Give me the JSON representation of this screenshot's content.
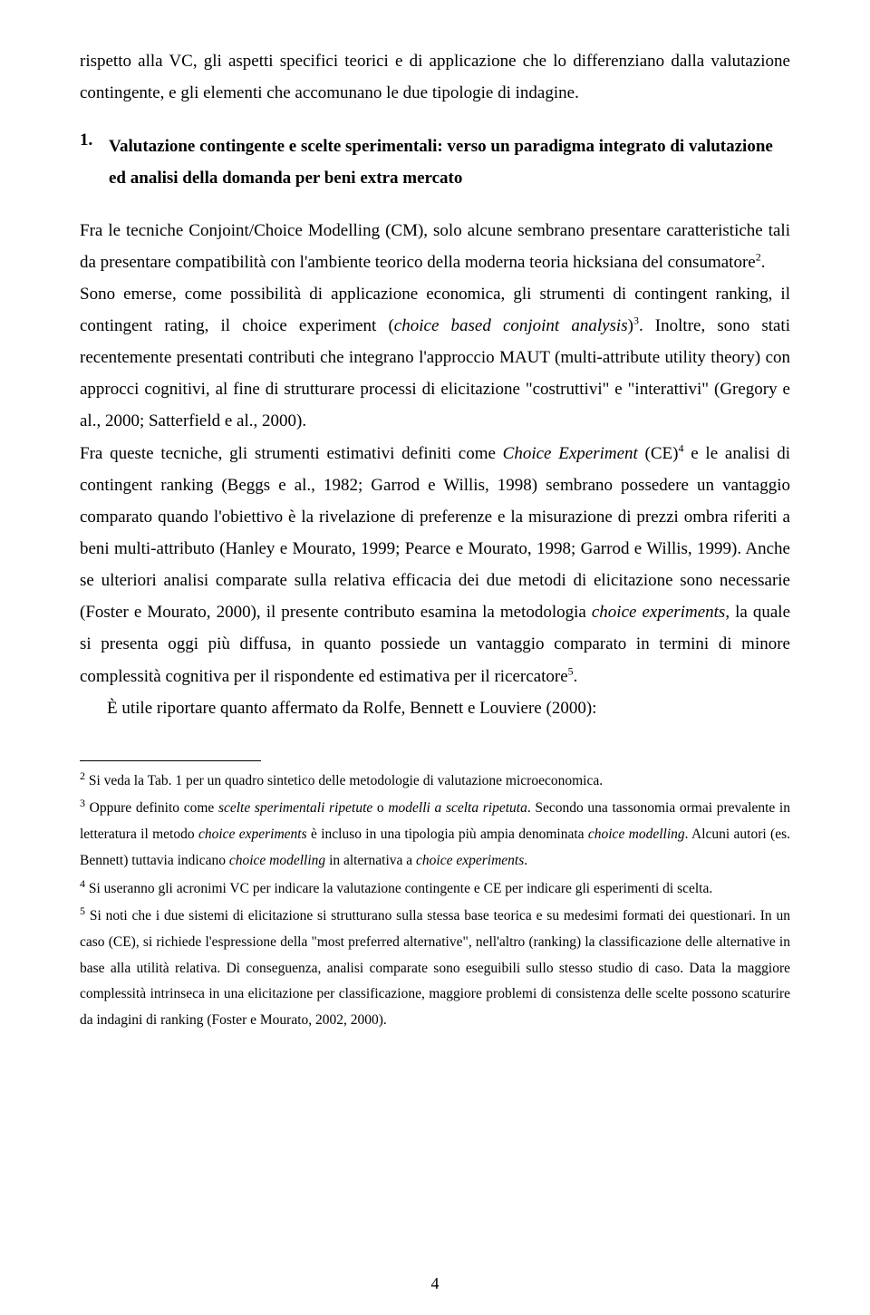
{
  "intro_para": "rispetto alla VC, gli aspetti specifici teorici e di applicazione che lo differenziano dalla valutazione contingente, e gli elementi che accomunano le due tipologie di indagine.",
  "heading": {
    "number": "1.",
    "title": "Valutazione contingente e scelte sperimentali: verso un paradigma integrato di valutazione ed analisi della domanda per beni extra mercato"
  },
  "body": {
    "p1_a": "Fra le tecniche Conjoint/Choice Modelling (CM), solo alcune sembrano presentare caratteristiche tali da presentare compatibilità con l'ambiente teorico della moderna teoria hicksiana del consumatore",
    "p1_sup": "2",
    "p1_b": ".",
    "p2_a": "Sono emerse, come possibilità di applicazione economica, gli strumenti di contingent ranking, il contingent rating, il choice experiment (",
    "p2_it1": "choice based conjoint analysis",
    "p2_b": ")",
    "p2_sup": "3",
    "p2_c": ". Inoltre, sono stati recentemente presentati contributi che integrano l'approccio MAUT (multi-attribute utility theory) con approcci cognitivi, al fine di strutturare processi di elicitazione \"costruttivi\" e \"interattivi\" (Gregory e al., 2000; Satterfield e al., 2000).",
    "p3_a": "Fra queste tecniche, gli strumenti estimativi definiti come ",
    "p3_it1": "Choice Experiment",
    "p3_b": " (CE)",
    "p3_sup1": "4",
    "p3_c": " e le analisi di contingent ranking (Beggs e al., 1982; Garrod e Willis, 1998) sembrano possedere un vantaggio comparato quando l'obiettivo è la rivelazione di preferenze e la misurazione di prezzi ombra riferiti a beni multi-attributo (Hanley e Mourato, 1999; Pearce e Mourato, 1998; Garrod e Willis, 1999). Anche se ulteriori analisi comparate sulla relativa efficacia dei due metodi di elicitazione sono necessarie (Foster e Mourato, 2000), il presente contributo esamina la metodologia ",
    "p3_it2": "choice experiments",
    "p3_d": ", la quale si presenta oggi più diffusa, in quanto possiede un vantaggio comparato in termini di minore complessità cognitiva per il rispondente ed estimativa per il ricercatore",
    "p3_sup2": "5",
    "p3_e": ".",
    "p4": "È utile riportare quanto affermato da Rolfe, Bennett e Louviere (2000):"
  },
  "footnotes": {
    "f2_sup": "2",
    "f2": " Si veda la Tab. 1 per un quadro sintetico delle metodologie di valutazione microeconomica.",
    "f3_sup": "3",
    "f3_a": " Oppure definito come ",
    "f3_it1": "scelte sperimentali ripetute",
    "f3_b": " o ",
    "f3_it2": "modelli a scelta ripetuta",
    "f3_c": ". Secondo una tassonomia ormai prevalente in letteratura il metodo ",
    "f3_it3": "choice experiments",
    "f3_d": " è incluso in una tipologia più ampia denominata ",
    "f3_it4": "choice modelling",
    "f3_e": ". Alcuni autori (es. Bennett) tuttavia indicano ",
    "f3_it5": "choice modelling",
    "f3_f": " in alternativa a ",
    "f3_it6": "choice experiments",
    "f3_g": ".",
    "f4_sup": "4",
    "f4": " Si useranno gli acronimi VC per indicare la valutazione contingente e CE per indicare gli esperimenti di scelta.",
    "f5_sup": "5",
    "f5": " Si noti che i due sistemi di elicitazione si strutturano sulla stessa base teorica e su medesimi formati dei questionari. In un caso (CE), si richiede l'espressione della \"most preferred alternative\", nell'altro (ranking) la classificazione delle alternative in base alla utilità relativa. Di conseguenza, analisi comparate sono eseguibili sullo stesso studio di caso. Data la maggiore complessità intrinseca in una elicitazione per classificazione, maggiore problemi di consistenza delle scelte possono scaturire da indagini di ranking (Foster e Mourato, 2002, 2000)."
  },
  "page_number": "4"
}
